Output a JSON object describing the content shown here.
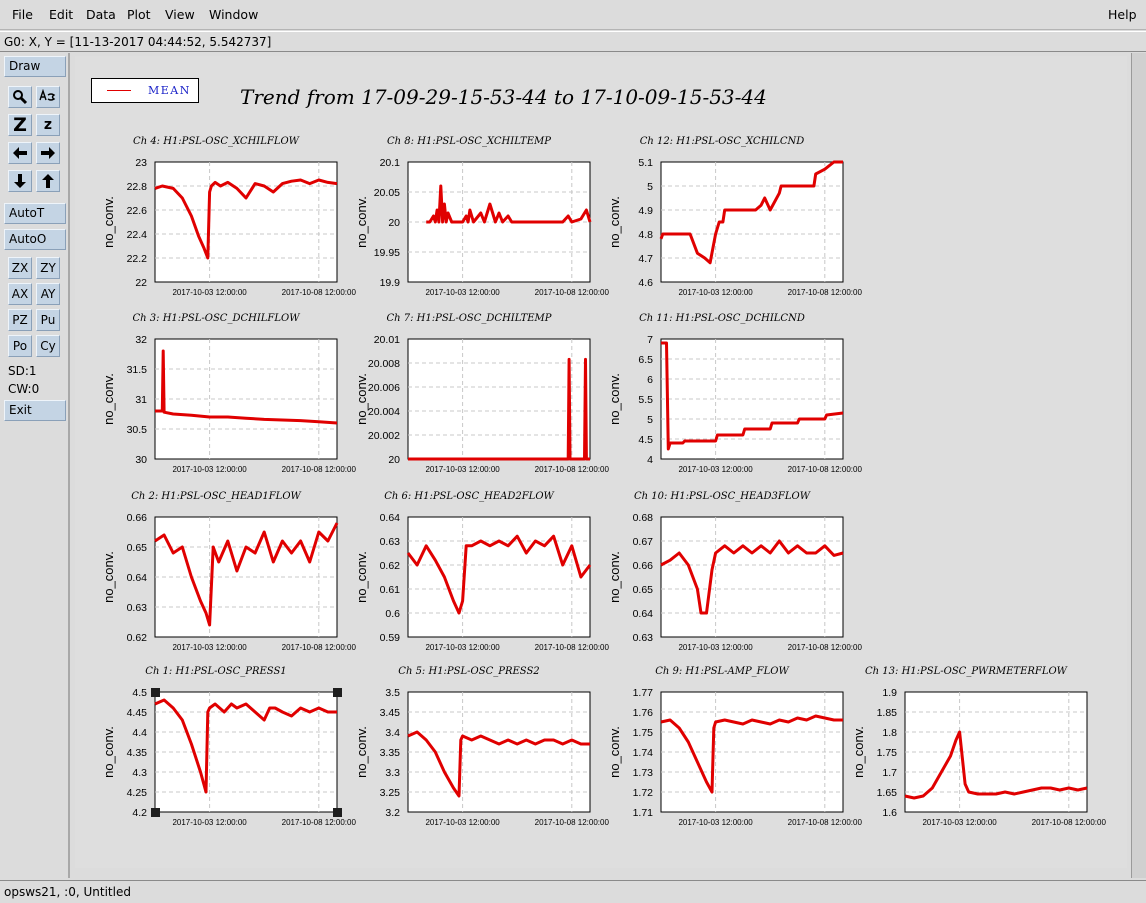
{
  "menu": [
    "File",
    "Edit",
    "Data",
    "Plot",
    "View",
    "Window"
  ],
  "help": "Help",
  "status": "G0: X, Y = [11-13-2017 04:44:52, 5.542737]",
  "toolbox": {
    "draw": "Draw",
    "zoom_big": "Z",
    "zoom_small": "z",
    "autoT": "AutoT",
    "autoO": "AutoO",
    "grid_buttons": [
      "ZX",
      "ZY",
      "AX",
      "AY",
      "PZ",
      "Pu",
      "Po",
      "Cy"
    ],
    "sd": "SD:1",
    "cw": "CW:0",
    "exit": "Exit"
  },
  "bottom_status": "opsws21, :0, Untitled",
  "legend": {
    "label": "MEAN",
    "color": "#e00000"
  },
  "title": "Trend from 17-09-29-15-53-44 to 17-10-09-15-53-44",
  "chart_data": [
    {
      "type": "line",
      "title": "Ch 4: H1:PSL-OSC_XCHILFLOW",
      "ylabel": "no_conv.",
      "yticks": [
        "23",
        "22.8",
        "22.6",
        "22.4",
        "22.2",
        "22"
      ],
      "ylim": [
        22,
        23
      ],
      "xticks": [
        "2017-10-03 12:00:00",
        "2017-10-08 12:00:00"
      ],
      "series": [
        {
          "x": [
            0,
            0.04,
            0.1,
            0.15,
            0.2,
            0.24,
            0.27,
            0.29,
            0.3,
            0.31,
            0.33,
            0.36,
            0.4,
            0.45,
            0.5,
            0.55,
            0.6,
            0.65,
            0.7,
            0.75,
            0.8,
            0.85,
            0.9,
            0.95,
            1.0
          ],
          "values": [
            22.78,
            22.8,
            22.78,
            22.7,
            22.55,
            22.38,
            22.28,
            22.2,
            22.75,
            22.8,
            22.83,
            22.8,
            22.83,
            22.78,
            22.7,
            22.82,
            22.8,
            22.75,
            22.82,
            22.84,
            22.85,
            22.82,
            22.85,
            22.83,
            22.82
          ]
        }
      ]
    },
    {
      "type": "line",
      "title": "Ch 8: H1:PSL-OSC_XCHILTEMP",
      "ylabel": "no_conv.",
      "yticks": [
        "20.1",
        "20.05",
        "20",
        "19.95",
        "19.9"
      ],
      "ylim": [
        19.9,
        20.1
      ],
      "xticks": [
        "2017-10-03 12:00:00",
        "2017-10-08 12:00:00"
      ],
      "series": [
        {
          "x": [
            0.1,
            0.12,
            0.14,
            0.15,
            0.16,
            0.17,
            0.18,
            0.19,
            0.2,
            0.21,
            0.22,
            0.24,
            0.3,
            0.32,
            0.33,
            0.34,
            0.36,
            0.4,
            0.42,
            0.45,
            0.48,
            0.5,
            0.52,
            0.55,
            0.57,
            0.6,
            0.62,
            0.85,
            0.88,
            0.9,
            0.95,
            0.98,
            1.0
          ],
          "values": [
            20,
            20,
            20.01,
            20,
            20.02,
            20,
            20.06,
            20,
            20.03,
            20,
            20.015,
            20,
            20,
            20.01,
            20,
            20.02,
            20,
            20.015,
            20,
            20.03,
            20,
            20.015,
            20,
            20.01,
            20,
            20,
            20,
            20,
            20.01,
            20,
            20.005,
            20.02,
            20
          ]
        }
      ]
    },
    {
      "type": "line",
      "title": "Ch 12: H1:PSL-OSC_XCHILCND",
      "ylabel": "no_conv.",
      "yticks": [
        "5.1",
        "5",
        "4.9",
        "4.8",
        "4.7",
        "4.6"
      ],
      "ylim": [
        4.6,
        5.1
      ],
      "xticks": [
        "2017-10-03 12:00:00",
        "2017-10-08 12:00:00"
      ],
      "series": [
        {
          "x": [
            0,
            0.01,
            0.08,
            0.16,
            0.2,
            0.24,
            0.27,
            0.3,
            0.32,
            0.34,
            0.35,
            0.52,
            0.55,
            0.57,
            0.6,
            0.65,
            0.66,
            0.84,
            0.85,
            0.9,
            0.95,
            1.0
          ],
          "values": [
            4.78,
            4.8,
            4.8,
            4.8,
            4.72,
            4.7,
            4.68,
            4.8,
            4.85,
            4.85,
            4.9,
            4.9,
            4.92,
            4.95,
            4.9,
            4.97,
            5.0,
            5.0,
            5.05,
            5.07,
            5.1,
            5.1
          ]
        }
      ]
    },
    {
      "type": "line",
      "title": "Ch 3: H1:PSL-OSC_DCHILFLOW",
      "ylabel": "no_conv.",
      "yticks": [
        "32",
        "31.5",
        "31",
        "30.5",
        "30"
      ],
      "ylim": [
        30,
        32
      ],
      "xticks": [
        "2017-10-03 12:00:00",
        "2017-10-08 12:00:00"
      ],
      "series": [
        {
          "x": [
            0,
            0.04,
            0.045,
            0.05,
            0.1,
            0.2,
            0.3,
            0.4,
            0.5,
            0.6,
            0.7,
            0.8,
            0.9,
            1.0
          ],
          "values": [
            30.8,
            30.8,
            31.8,
            30.78,
            30.75,
            30.73,
            30.7,
            30.7,
            30.68,
            30.66,
            30.65,
            30.64,
            30.62,
            30.6
          ]
        }
      ]
    },
    {
      "type": "line",
      "title": "Ch 7: H1:PSL-OSC_DCHILTEMP",
      "ylabel": "no_conv.",
      "yticks": [
        "20.01",
        "20.008",
        "20.006",
        "20.004",
        "20.002",
        "20"
      ],
      "ylim": [
        20,
        20.01
      ],
      "xticks": [
        "2017-10-03 12:00:00",
        "2017-10-08 12:00:00"
      ],
      "series": [
        {
          "x": [
            0,
            0.88,
            0.885,
            0.89,
            0.97,
            0.975,
            0.98,
            1.0
          ],
          "values": [
            20,
            20,
            20.0083,
            20,
            20,
            20.0083,
            20,
            20
          ]
        }
      ]
    },
    {
      "type": "line",
      "title": "Ch 11: H1:PSL-OSC_DCHILCND",
      "ylabel": "no_conv.",
      "yticks": [
        "7",
        "6.5",
        "6",
        "5.5",
        "5",
        "4.5",
        "4"
      ],
      "ylim": [
        4,
        7
      ],
      "xticks": [
        "2017-10-03 12:00:00",
        "2017-10-08 12:00:00"
      ],
      "series": [
        {
          "x": [
            0,
            0.03,
            0.04,
            0.05,
            0.12,
            0.13,
            0.3,
            0.31,
            0.45,
            0.46,
            0.6,
            0.61,
            0.75,
            0.76,
            0.9,
            0.91,
            1.0
          ],
          "values": [
            6.9,
            6.9,
            4.25,
            4.4,
            4.4,
            4.45,
            4.45,
            4.6,
            4.6,
            4.75,
            4.75,
            4.9,
            4.9,
            5.0,
            5.0,
            5.1,
            5.15
          ]
        }
      ]
    },
    {
      "type": "line",
      "title": "Ch 2: H1:PSL-OSC_HEAD1FLOW",
      "ylabel": "no_conv.",
      "yticks": [
        "0.66",
        "0.65",
        "0.64",
        "0.63",
        "0.62"
      ],
      "ylim": [
        0.62,
        0.66
      ],
      "xticks": [
        "2017-10-03 12:00:00",
        "2017-10-08 12:00:00"
      ],
      "series": [
        {
          "x": [
            0,
            0.05,
            0.1,
            0.15,
            0.2,
            0.25,
            0.28,
            0.3,
            0.32,
            0.35,
            0.4,
            0.45,
            0.5,
            0.55,
            0.6,
            0.65,
            0.7,
            0.75,
            0.8,
            0.85,
            0.9,
            0.95,
            1.0
          ],
          "values": [
            0.652,
            0.654,
            0.648,
            0.65,
            0.64,
            0.632,
            0.628,
            0.624,
            0.65,
            0.645,
            0.652,
            0.642,
            0.65,
            0.648,
            0.655,
            0.645,
            0.652,
            0.648,
            0.652,
            0.645,
            0.655,
            0.652,
            0.658
          ]
        }
      ]
    },
    {
      "type": "line",
      "title": "Ch 6: H1:PSL-OSC_HEAD2FLOW",
      "ylabel": "no_conv.",
      "yticks": [
        "0.64",
        "0.63",
        "0.62",
        "0.61",
        "0.6",
        "0.59"
      ],
      "ylim": [
        0.59,
        0.64
      ],
      "xticks": [
        "2017-10-03 12:00:00",
        "2017-10-08 12:00:00"
      ],
      "series": [
        {
          "x": [
            0,
            0.05,
            0.1,
            0.15,
            0.2,
            0.25,
            0.28,
            0.3,
            0.32,
            0.35,
            0.4,
            0.45,
            0.5,
            0.55,
            0.6,
            0.65,
            0.7,
            0.75,
            0.8,
            0.85,
            0.9,
            0.95,
            1.0
          ],
          "values": [
            0.625,
            0.62,
            0.628,
            0.622,
            0.615,
            0.605,
            0.6,
            0.605,
            0.628,
            0.628,
            0.63,
            0.628,
            0.63,
            0.628,
            0.632,
            0.625,
            0.63,
            0.628,
            0.632,
            0.62,
            0.628,
            0.615,
            0.62
          ]
        }
      ]
    },
    {
      "type": "line",
      "title": "Ch 10: H1:PSL-OSC_HEAD3FLOW",
      "ylabel": "no_conv.",
      "yticks": [
        "0.68",
        "0.67",
        "0.66",
        "0.65",
        "0.64",
        "0.63"
      ],
      "ylim": [
        0.63,
        0.68
      ],
      "xticks": [
        "2017-10-03 12:00:00",
        "2017-10-08 12:00:00"
      ],
      "series": [
        {
          "x": [
            0,
            0.05,
            0.1,
            0.15,
            0.2,
            0.22,
            0.25,
            0.28,
            0.3,
            0.35,
            0.4,
            0.45,
            0.5,
            0.55,
            0.6,
            0.65,
            0.7,
            0.75,
            0.8,
            0.85,
            0.9,
            0.95,
            1.0
          ],
          "values": [
            0.66,
            0.662,
            0.665,
            0.66,
            0.65,
            0.64,
            0.64,
            0.658,
            0.665,
            0.668,
            0.665,
            0.668,
            0.665,
            0.668,
            0.665,
            0.67,
            0.665,
            0.668,
            0.665,
            0.665,
            0.668,
            0.664,
            0.665
          ]
        }
      ]
    },
    {
      "type": "line",
      "title": "Ch 1: H1:PSL-OSC_PRESS1",
      "ylabel": "no_conv.",
      "yticks": [
        "4.5",
        "4.45",
        "4.4",
        "4.35",
        "4.3",
        "4.25",
        "4.2"
      ],
      "ylim": [
        4.2,
        4.5
      ],
      "xticks": [
        "2017-10-03 12:00:00",
        "2017-10-08 12:00:00"
      ],
      "series": [
        {
          "x": [
            0,
            0.05,
            0.1,
            0.15,
            0.2,
            0.25,
            0.28,
            0.29,
            0.3,
            0.33,
            0.38,
            0.42,
            0.45,
            0.5,
            0.55,
            0.6,
            0.63,
            0.66,
            0.7,
            0.75,
            0.8,
            0.85,
            0.9,
            0.95,
            1.0
          ],
          "values": [
            4.47,
            4.48,
            4.46,
            4.43,
            4.37,
            4.3,
            4.25,
            4.45,
            4.46,
            4.47,
            4.45,
            4.47,
            4.46,
            4.47,
            4.45,
            4.43,
            4.46,
            4.46,
            4.45,
            4.44,
            4.46,
            4.45,
            4.46,
            4.45,
            4.45
          ]
        }
      ]
    },
    {
      "type": "line",
      "title": "Ch 5: H1:PSL-OSC_PRESS2",
      "ylabel": "no_conv.",
      "yticks": [
        "3.5",
        "3.45",
        "3.4",
        "3.35",
        "3.3",
        "3.25",
        "3.2"
      ],
      "ylim": [
        3.2,
        3.5
      ],
      "xticks": [
        "2017-10-03 12:00:00",
        "2017-10-08 12:00:00"
      ],
      "series": [
        {
          "x": [
            0,
            0.05,
            0.1,
            0.15,
            0.2,
            0.25,
            0.28,
            0.29,
            0.3,
            0.35,
            0.4,
            0.45,
            0.5,
            0.55,
            0.6,
            0.65,
            0.7,
            0.75,
            0.8,
            0.85,
            0.9,
            0.95,
            1.0
          ],
          "values": [
            3.39,
            3.4,
            3.38,
            3.35,
            3.3,
            3.26,
            3.24,
            3.38,
            3.39,
            3.38,
            3.39,
            3.38,
            3.37,
            3.38,
            3.37,
            3.38,
            3.37,
            3.38,
            3.38,
            3.37,
            3.38,
            3.37,
            3.37
          ]
        }
      ]
    },
    {
      "type": "line",
      "title": "Ch 9: H1:PSL-AMP_FLOW",
      "ylabel": "no_conv.",
      "yticks": [
        "1.77",
        "1.76",
        "1.75",
        "1.74",
        "1.73",
        "1.72",
        "1.71"
      ],
      "ylim": [
        1.71,
        1.77
      ],
      "xticks": [
        "2017-10-03 12:00:00",
        "2017-10-08 12:00:00"
      ],
      "series": [
        {
          "x": [
            0,
            0.05,
            0.1,
            0.15,
            0.2,
            0.25,
            0.28,
            0.29,
            0.3,
            0.35,
            0.4,
            0.45,
            0.5,
            0.55,
            0.6,
            0.65,
            0.7,
            0.75,
            0.8,
            0.85,
            0.9,
            0.95,
            1.0
          ],
          "values": [
            1.755,
            1.756,
            1.752,
            1.745,
            1.735,
            1.725,
            1.72,
            1.752,
            1.755,
            1.756,
            1.755,
            1.754,
            1.756,
            1.755,
            1.754,
            1.756,
            1.755,
            1.757,
            1.756,
            1.758,
            1.757,
            1.756,
            1.756
          ]
        }
      ]
    },
    {
      "type": "line",
      "title": "Ch 13: H1:PSL-OSC_PWRMETERFLOW",
      "ylabel": "no_conv.",
      "yticks": [
        "1.9",
        "1.85",
        "1.8",
        "1.75",
        "1.7",
        "1.65",
        "1.6"
      ],
      "ylim": [
        1.6,
        1.9
      ],
      "xticks": [
        "2017-10-03 12:00:00",
        "2017-10-08 12:00:00"
      ],
      "series": [
        {
          "x": [
            0,
            0.05,
            0.1,
            0.15,
            0.2,
            0.25,
            0.28,
            0.3,
            0.33,
            0.35,
            0.4,
            0.45,
            0.5,
            0.55,
            0.6,
            0.65,
            0.7,
            0.75,
            0.8,
            0.85,
            0.9,
            0.95,
            1.0
          ],
          "values": [
            1.64,
            1.635,
            1.64,
            1.66,
            1.7,
            1.74,
            1.78,
            1.8,
            1.67,
            1.65,
            1.645,
            1.645,
            1.645,
            1.65,
            1.645,
            1.65,
            1.655,
            1.66,
            1.66,
            1.655,
            1.66,
            1.655,
            1.66
          ]
        }
      ]
    }
  ]
}
